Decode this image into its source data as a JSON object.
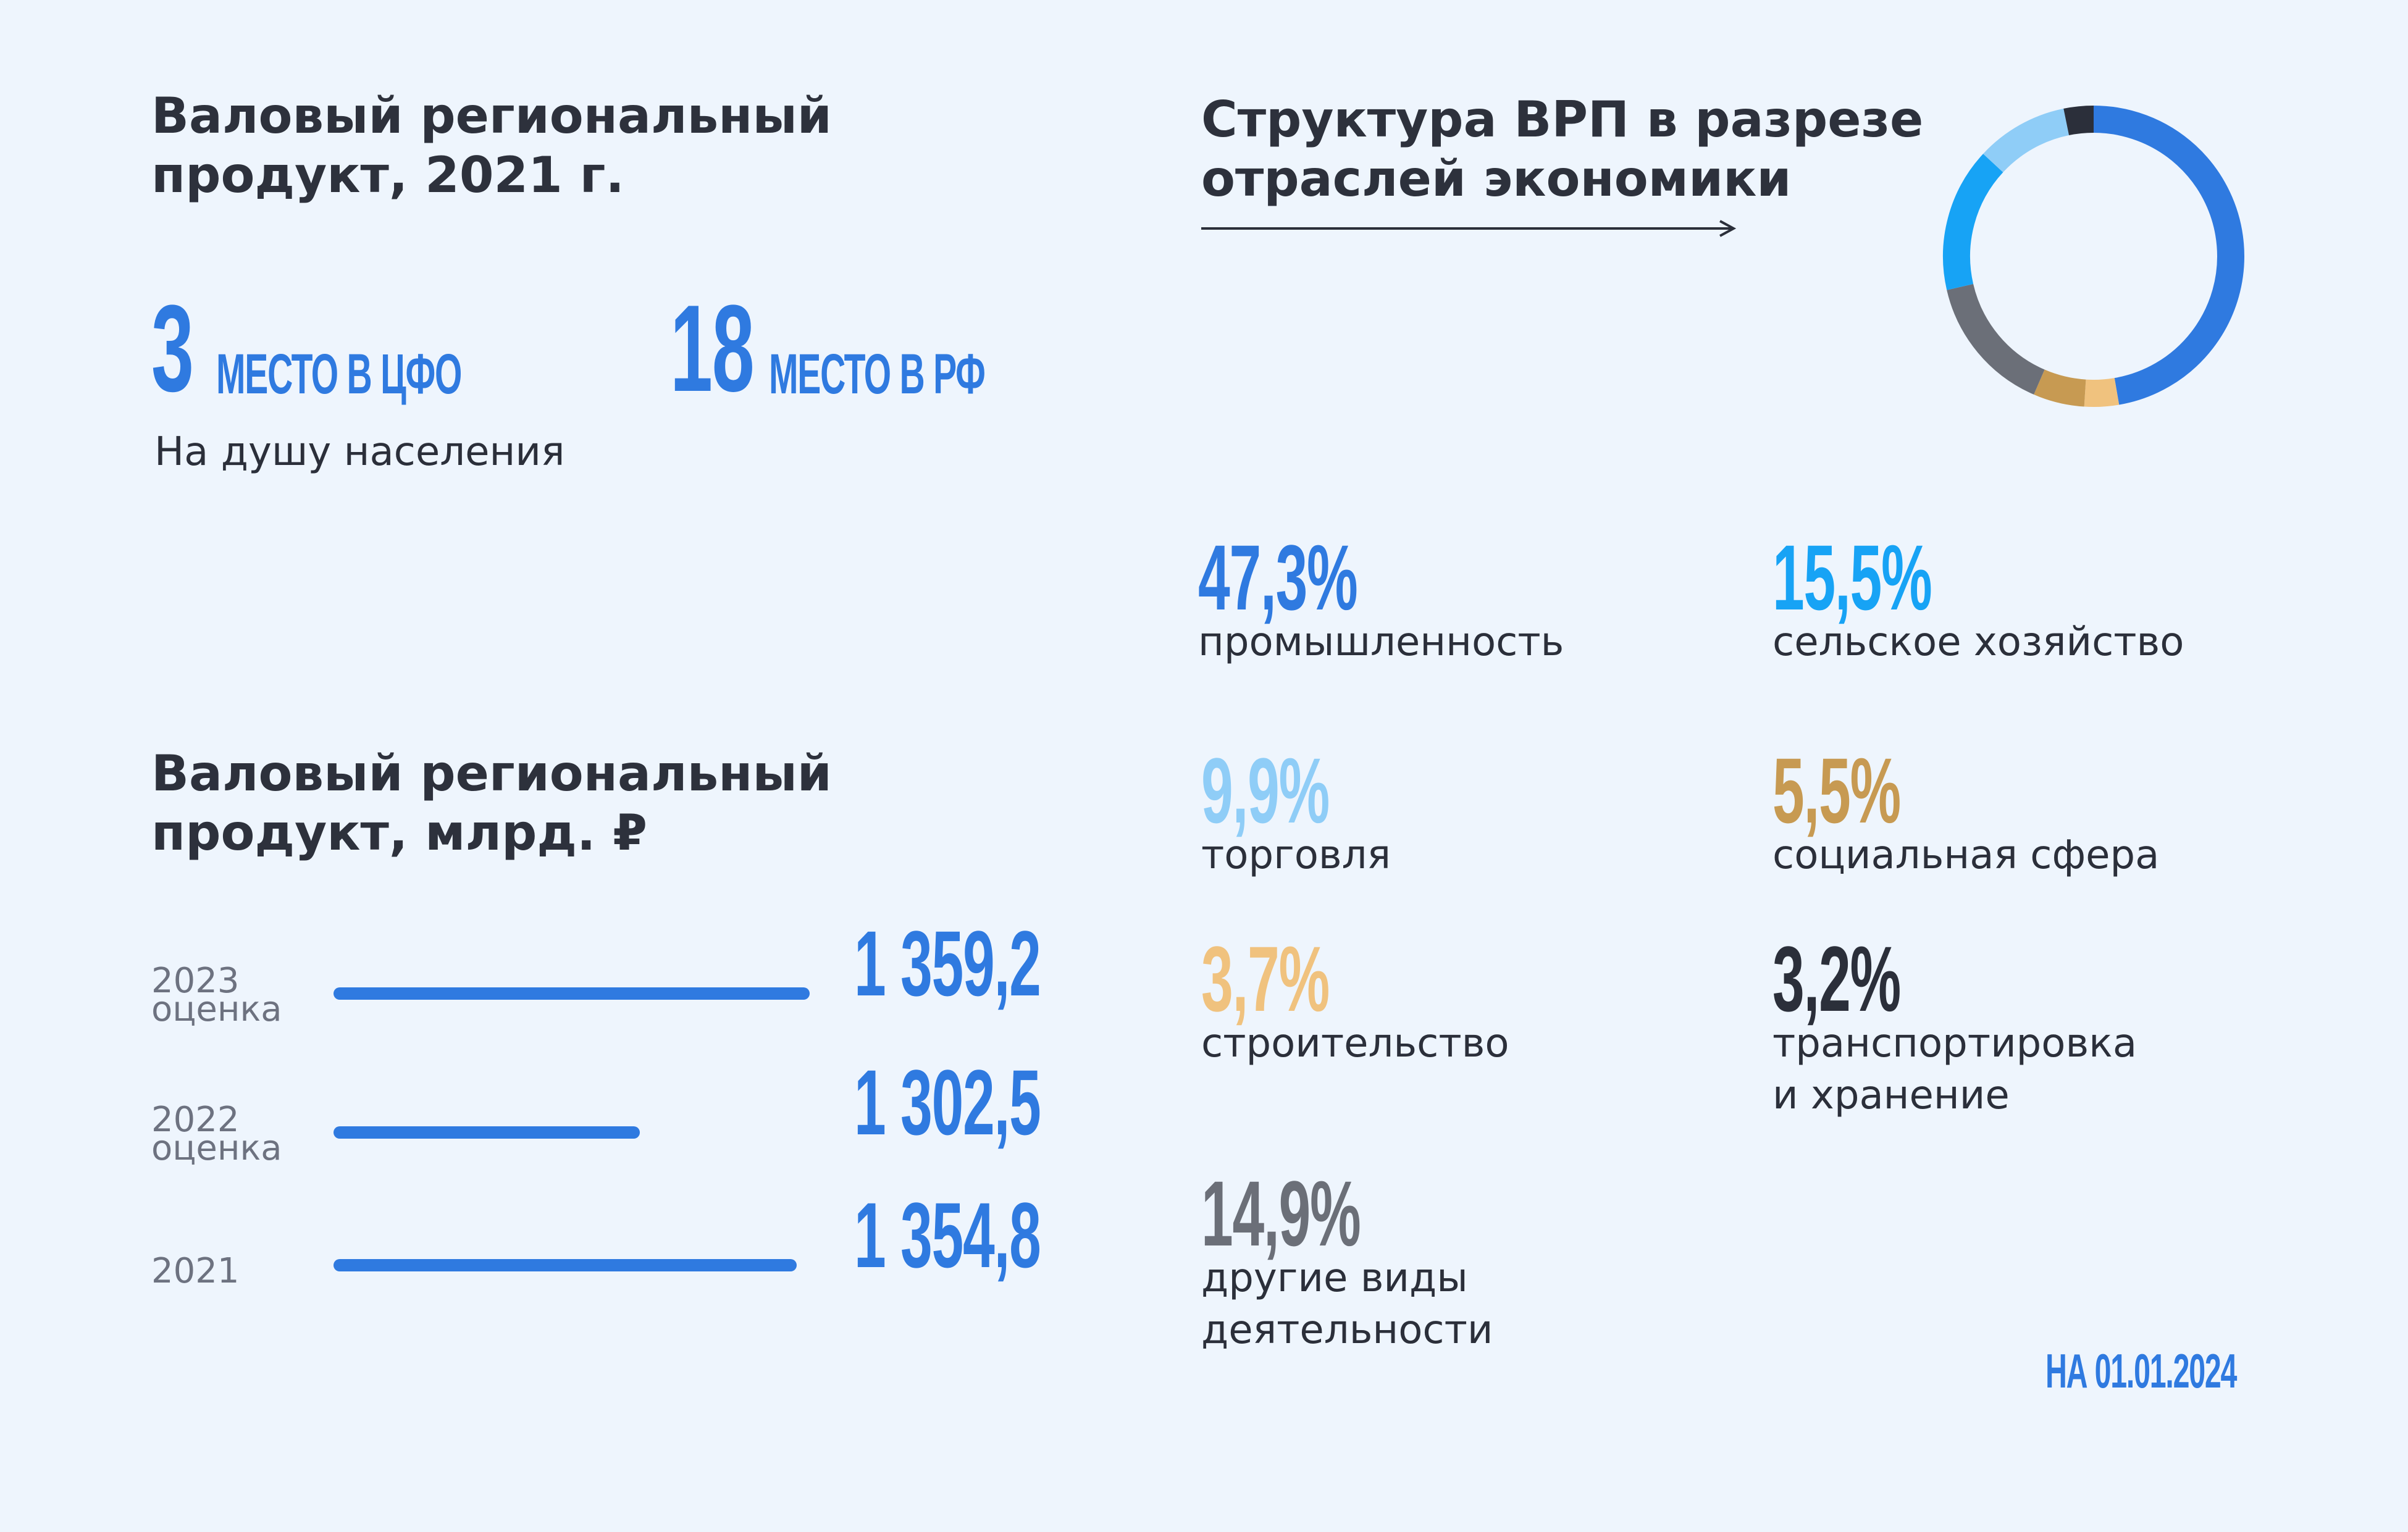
{
  "left": {
    "title_line1": "Валовый региональный",
    "title_line2": "продукт, 2021 г.",
    "rank_cfo_num": "3",
    "rank_cfo_label": "МЕСТО В ЦФО",
    "rank_rf_num": "18",
    "rank_rf_label": "МЕСТО В РФ",
    "per_capita": "На душу населения"
  },
  "grp": {
    "title_line1": "Валовый региональный",
    "title_line2": "продукт, млрд. ₽"
  },
  "structure": {
    "title_line1": "Структура ВРП в разрезе",
    "title_line2": "отраслей экономики"
  },
  "footer": {
    "date": "НА 01.01.2024"
  },
  "colors": {
    "accent": "#2f7ae0",
    "background": "#eef5fd",
    "heading": "#2d313c"
  },
  "chart_data": [
    {
      "type": "bar",
      "orientation": "horizontal",
      "categories": [
        {
          "year": "2023",
          "note": "оценка"
        },
        {
          "year": "2022",
          "note": "оценка"
        },
        {
          "year": "2021",
          "note": ""
        }
      ],
      "values": [
        1359.2,
        1302.5,
        1354.8
      ],
      "value_labels": [
        "1 359,2",
        "1 302,5",
        "1 354,8"
      ],
      "ylim": [
        1200,
        1360
      ],
      "color": "#2f7ae0"
    },
    {
      "type": "pie",
      "donut": true,
      "slices": [
        {
          "label": "промышленность",
          "value": 47.3,
          "display": "47,3%",
          "color": "#2f7ae0"
        },
        {
          "label": "строительство",
          "value": 3.7,
          "display": "3,7%",
          "color": "#f0c27e"
        },
        {
          "label": "социальная сфера",
          "value": 5.5,
          "display": "5,5%",
          "color": "#c79a52"
        },
        {
          "label": "другие виды деятельности",
          "value": 14.9,
          "display": "14,9%",
          "color": "#6b6f78"
        },
        {
          "label": "сельское хозяйство",
          "value": 15.5,
          "display": "15,5%",
          "color": "#17a3f5"
        },
        {
          "label": "торговля",
          "value": 9.9,
          "display": "9,9%",
          "color": "#8fcdf7"
        },
        {
          "label": "транспортировка и хранение",
          "value": 3.2,
          "display": "3,2%",
          "color": "#2b2f3a"
        }
      ]
    }
  ]
}
